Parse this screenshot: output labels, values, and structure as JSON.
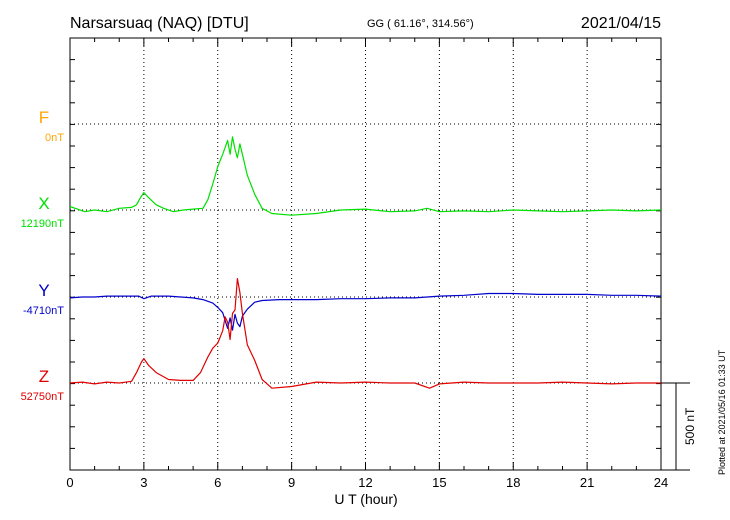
{
  "header": {
    "station": "Narsarsuaq (NAQ)  [DTU]",
    "coords": "GG ( 61.16°, 314.56°)",
    "date": "2021/04/15"
  },
  "plotted_note": "Plotted at 2021/05/16 01:33 UT",
  "chart_data": {
    "type": "line",
    "xlabel": "U T (hour)",
    "xlim": [
      0,
      24
    ],
    "x_ticks": [
      "0",
      "3",
      "6",
      "9",
      "12",
      "15",
      "18",
      "21",
      "24"
    ],
    "scale_bar": {
      "label": "500 nT",
      "value_nT": 500
    },
    "colors": {
      "F": "#ffa500",
      "X": "#00e000",
      "Y": "#0000cc",
      "Z": "#e00000"
    },
    "series": [
      {
        "name": "F",
        "baseline": "0nT",
        "points": []
      },
      {
        "name": "X",
        "baseline": "12190nT",
        "points": [
          [
            0,
            20
          ],
          [
            0.3,
            5
          ],
          [
            0.6,
            -10
          ],
          [
            1,
            0
          ],
          [
            1.5,
            -10
          ],
          [
            2,
            10
          ],
          [
            2.5,
            15
          ],
          [
            2.7,
            30
          ],
          [
            2.9,
            80
          ],
          [
            3.0,
            100
          ],
          [
            3.2,
            70
          ],
          [
            3.5,
            30
          ],
          [
            3.8,
            10
          ],
          [
            4.2,
            -10
          ],
          [
            4.6,
            0
          ],
          [
            5.0,
            5
          ],
          [
            5.4,
            10
          ],
          [
            5.6,
            60
          ],
          [
            5.8,
            150
          ],
          [
            6.0,
            250
          ],
          [
            6.2,
            320
          ],
          [
            6.4,
            400
          ],
          [
            6.5,
            320
          ],
          [
            6.6,
            420
          ],
          [
            6.7,
            350
          ],
          [
            6.8,
            300
          ],
          [
            6.9,
            380
          ],
          [
            7.0,
            320
          ],
          [
            7.2,
            200
          ],
          [
            7.5,
            90
          ],
          [
            7.8,
            10
          ],
          [
            8.2,
            -20
          ],
          [
            9.0,
            -30
          ],
          [
            10,
            -20
          ],
          [
            11,
            0
          ],
          [
            12,
            5
          ],
          [
            13,
            -10
          ],
          [
            14,
            -5
          ],
          [
            14.5,
            10
          ],
          [
            15,
            -10
          ],
          [
            16,
            -5
          ],
          [
            17,
            -10
          ],
          [
            18,
            0
          ],
          [
            19,
            -5
          ],
          [
            20,
            -10
          ],
          [
            21,
            -5
          ],
          [
            22,
            0
          ],
          [
            23,
            -5
          ],
          [
            24,
            0
          ]
        ]
      },
      {
        "name": "Y",
        "baseline": "-4710nT",
        "points": [
          [
            0,
            -5
          ],
          [
            0.5,
            0
          ],
          [
            1,
            0
          ],
          [
            1.5,
            5
          ],
          [
            2,
            5
          ],
          [
            2.5,
            5
          ],
          [
            2.8,
            5
          ],
          [
            3.0,
            -10
          ],
          [
            3.3,
            5
          ],
          [
            3.6,
            5
          ],
          [
            4.0,
            5
          ],
          [
            4.5,
            0
          ],
          [
            5.0,
            -5
          ],
          [
            5.4,
            -15
          ],
          [
            5.8,
            -35
          ],
          [
            6.0,
            -60
          ],
          [
            6.2,
            -90
          ],
          [
            6.4,
            -180
          ],
          [
            6.5,
            -120
          ],
          [
            6.6,
            -190
          ],
          [
            6.7,
            -100
          ],
          [
            6.8,
            -150
          ],
          [
            6.9,
            -170
          ],
          [
            7.0,
            -110
          ],
          [
            7.2,
            -70
          ],
          [
            7.5,
            -30
          ],
          [
            7.8,
            -20
          ],
          [
            8.5,
            -15
          ],
          [
            9,
            -15
          ],
          [
            10,
            -15
          ],
          [
            11,
            -10
          ],
          [
            12,
            -10
          ],
          [
            13,
            -5
          ],
          [
            14,
            -5
          ],
          [
            15,
            5
          ],
          [
            16,
            10
          ],
          [
            17,
            20
          ],
          [
            18,
            20
          ],
          [
            19,
            15
          ],
          [
            20,
            15
          ],
          [
            21,
            15
          ],
          [
            22,
            10
          ],
          [
            23,
            10
          ],
          [
            24,
            5
          ]
        ]
      },
      {
        "name": "Z",
        "baseline": "52750nT",
        "points": [
          [
            0,
            0
          ],
          [
            0.5,
            5
          ],
          [
            1,
            -5
          ],
          [
            1.5,
            5
          ],
          [
            2,
            0
          ],
          [
            2.5,
            10
          ],
          [
            2.7,
            60
          ],
          [
            2.9,
            120
          ],
          [
            3.0,
            140
          ],
          [
            3.2,
            100
          ],
          [
            3.5,
            60
          ],
          [
            4.0,
            20
          ],
          [
            4.5,
            15
          ],
          [
            5.0,
            15
          ],
          [
            5.3,
            60
          ],
          [
            5.6,
            150
          ],
          [
            5.8,
            200
          ],
          [
            6.0,
            230
          ],
          [
            6.2,
            300
          ],
          [
            6.3,
            380
          ],
          [
            6.4,
            350
          ],
          [
            6.5,
            250
          ],
          [
            6.6,
            400
          ],
          [
            6.7,
            420
          ],
          [
            6.8,
            600
          ],
          [
            6.9,
            520
          ],
          [
            7.0,
            400
          ],
          [
            7.2,
            220
          ],
          [
            7.5,
            130
          ],
          [
            7.8,
            20
          ],
          [
            8.2,
            -30
          ],
          [
            9,
            -20
          ],
          [
            10,
            5
          ],
          [
            11,
            0
          ],
          [
            12,
            5
          ],
          [
            13,
            0
          ],
          [
            14,
            0
          ],
          [
            14.6,
            -30
          ],
          [
            15,
            -5
          ],
          [
            16,
            5
          ],
          [
            17,
            0
          ],
          [
            18,
            0
          ],
          [
            19,
            0
          ],
          [
            20,
            5
          ],
          [
            21,
            0
          ],
          [
            22,
            -5
          ],
          [
            23,
            0
          ],
          [
            24,
            0
          ]
        ]
      }
    ]
  }
}
